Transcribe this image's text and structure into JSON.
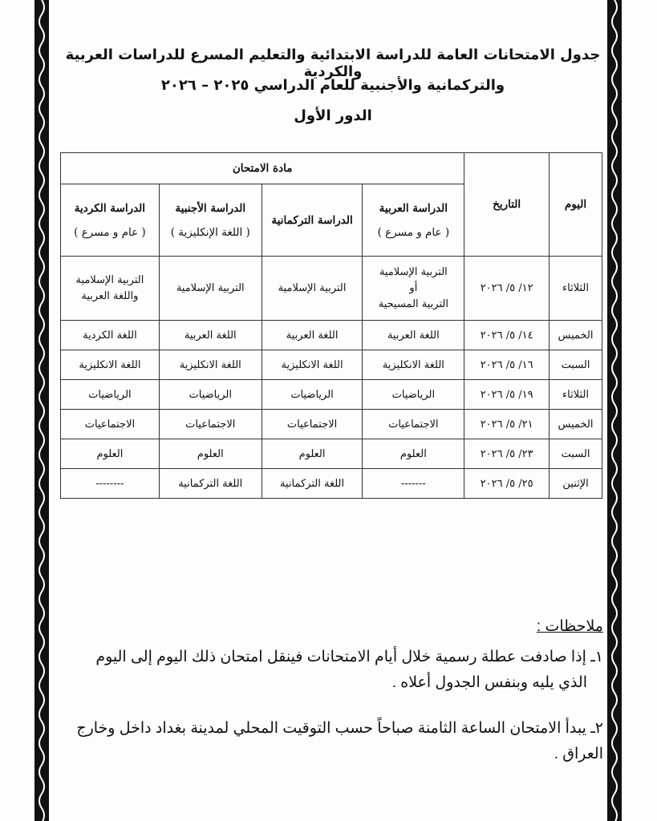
{
  "header": {
    "line1": "جدول الامتحانات العامة للدراسة الابتدائية والتعليم المسرع للدراسات العربية والكردية",
    "line2": "والتركمانية والأجنبية للعام الدراسي ٢٠٢٥ – ٢٠٢٦",
    "line3": "الدور الأول"
  },
  "table": {
    "col_day": "اليوم",
    "col_date": "التاريخ",
    "col_subject": "مادة الامتحان",
    "streams": [
      {
        "name": "الدراسة العربية",
        "note": "( عام و مسرع )"
      },
      {
        "name": "الدراسة التركمانية",
        "note": ""
      },
      {
        "name": "الدراسة الأجنبية",
        "note": "( اللغة الإنكليزية )"
      },
      {
        "name": "الدراسة الكردية",
        "note": "( عام و مسرع )"
      }
    ],
    "rows": [
      {
        "day": "الثلاثاء",
        "date": "١٢/ ٥/ ٢٠٢٦",
        "arabic": [
          "التربية الإسلامية",
          "أو",
          "التربية المسيحية"
        ],
        "turkmen": "التربية الإسلامية",
        "foreign": "التربية الإسلامية",
        "kurdish": [
          "التربية الإسلامية",
          "واللغة العربية"
        ]
      },
      {
        "day": "الخميس",
        "date": "١٤/ ٥/ ٢٠٢٦",
        "arabic": "اللغة العربية",
        "turkmen": "اللغة العربية",
        "foreign": "اللغة العربية",
        "kurdish": "اللغة الكردية"
      },
      {
        "day": "السبت",
        "date": "١٦/ ٥/ ٢٠٢٦",
        "arabic": "اللغة الانكليزية",
        "turkmen": "اللغة الانكليزية",
        "foreign": "اللغة الانكليزية",
        "kurdish": "اللغة الانكليزية"
      },
      {
        "day": "الثلاثاء",
        "date": "١٩/ ٥/ ٢٠٢٦",
        "arabic": "الرياضيات",
        "turkmen": "الرياضيات",
        "foreign": "الرياضيات",
        "kurdish": "الرياضيات"
      },
      {
        "day": "الخميس",
        "date": "٢١/ ٥/ ٢٠٢٦",
        "arabic": "الاجتماعيات",
        "turkmen": "الاجتماعيات",
        "foreign": "الاجتماعيات",
        "kurdish": "الاجتماعيات"
      },
      {
        "day": "السبت",
        "date": "٢٣/ ٥/ ٢٠٢٦",
        "arabic": "العلوم",
        "turkmen": "العلوم",
        "foreign": "العلوم",
        "kurdish": "العلوم"
      },
      {
        "day": "الإثنين",
        "date": "٢٥/ ٥/ ٢٠٢٦",
        "arabic": "-------",
        "turkmen": "اللغة التركمانية",
        "foreign": "اللغة التركمانية",
        "kurdish": "--------"
      }
    ]
  },
  "notes": {
    "title": "ملاحظات :",
    "items": [
      {
        "line1": "١ـ إذا صادفت عطلة رسمية خلال أيام الامتحانات فينقل امتحان ذلك اليوم إلى اليوم",
        "line2": "الذي يليه وبنفس الجدول أعلاه ."
      },
      {
        "line1": "٢ـ يبدأ الامتحان الساعة الثامنة صباحاً حسب التوقيت المحلي لمدينة بغداد داخل وخارج",
        "line2": "العراق ."
      }
    ]
  },
  "colors": {
    "ink": "#111111",
    "border_strip": "#111111",
    "paper": "#fdfdfd"
  }
}
